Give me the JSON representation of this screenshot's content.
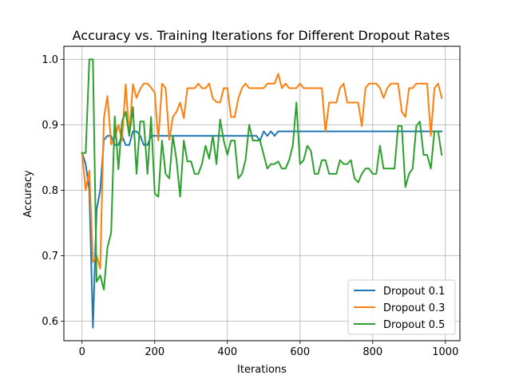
{
  "chart_data": {
    "type": "line",
    "title": "Accuracy vs. Training Iterations for Different Dropout Rates",
    "xlabel": "Iterations",
    "ylabel": "Accuracy",
    "xlim": [
      -50,
      1040
    ],
    "ylim": [
      0.57,
      1.02
    ],
    "xticks": [
      0,
      200,
      400,
      600,
      800,
      1000
    ],
    "yticks": [
      0.6,
      0.7,
      0.8,
      0.9,
      1.0
    ],
    "xtick_labels": [
      "0",
      "200",
      "400",
      "600",
      "800",
      "1000"
    ],
    "ytick_labels": [
      "0.6",
      "0.7",
      "0.8",
      "0.9",
      "1.0"
    ],
    "grid": true,
    "legend_position": "lower-right",
    "series": [
      {
        "name": "Dropout 0.1",
        "color": "#1f77b4",
        "x": [
          0,
          10,
          20,
          30,
          40,
          50,
          60,
          70,
          80,
          90,
          100,
          110,
          120,
          130,
          140,
          150,
          160,
          170,
          180,
          190,
          200,
          210,
          220,
          480,
          490,
          500,
          510,
          520,
          530,
          540,
          550,
          990
        ],
        "values": [
          0.857,
          0.84,
          0.8,
          0.59,
          0.77,
          0.8,
          0.877,
          0.883,
          0.883,
          0.869,
          0.869,
          0.883,
          0.869,
          0.869,
          0.89,
          0.89,
          0.883,
          0.869,
          0.869,
          0.883,
          0.883,
          0.883,
          0.883,
          0.883,
          0.876,
          0.89,
          0.883,
          0.89,
          0.883,
          0.89,
          0.89,
          0.89
        ]
      },
      {
        "name": "Dropout 0.3",
        "color": "#ff7f0e",
        "x": [
          0,
          10,
          20,
          30,
          40,
          50,
          60,
          70,
          80,
          90,
          100,
          110,
          120,
          130,
          140,
          150,
          160,
          170,
          180,
          190,
          200,
          210,
          220,
          230,
          240,
          250,
          260,
          270,
          280,
          290,
          300,
          310,
          320,
          330,
          340,
          350,
          360,
          370,
          380,
          390,
          400,
          410,
          420,
          430,
          440,
          450,
          460,
          470,
          480,
          490,
          500,
          510,
          520,
          530,
          540,
          550,
          560,
          570,
          580,
          590,
          600,
          610,
          620,
          630,
          640,
          650,
          660,
          670,
          680,
          690,
          700,
          710,
          720,
          730,
          740,
          750,
          760,
          770,
          780,
          790,
          800,
          810,
          820,
          830,
          840,
          850,
          860,
          870,
          880,
          890,
          900,
          910,
          920,
          930,
          940,
          950,
          960,
          970,
          980,
          990
        ],
        "values": [
          0.857,
          0.8,
          0.83,
          0.69,
          0.7,
          0.68,
          0.91,
          0.944,
          0.87,
          0.88,
          0.9,
          0.876,
          0.962,
          0.883,
          0.962,
          0.941,
          0.955,
          0.963,
          0.963,
          0.957,
          0.949,
          0.876,
          0.963,
          0.956,
          0.877,
          0.912,
          0.92,
          0.934,
          0.91,
          0.956,
          0.956,
          0.956,
          0.963,
          0.956,
          0.956,
          0.963,
          0.94,
          0.935,
          0.934,
          0.956,
          0.956,
          0.912,
          0.912,
          0.94,
          0.956,
          0.963,
          0.956,
          0.956,
          0.956,
          0.956,
          0.956,
          0.963,
          0.963,
          0.963,
          0.978,
          0.956,
          0.963,
          0.956,
          0.956,
          0.956,
          0.963,
          0.956,
          0.956,
          0.956,
          0.956,
          0.956,
          0.956,
          0.89,
          0.934,
          0.934,
          0.934,
          0.956,
          0.963,
          0.934,
          0.934,
          0.934,
          0.934,
          0.898,
          0.956,
          0.963,
          0.963,
          0.963,
          0.956,
          0.941,
          0.956,
          0.963,
          0.963,
          0.963,
          0.92,
          0.912,
          0.956,
          0.956,
          0.963,
          0.963,
          0.963,
          0.963,
          0.883,
          0.956,
          0.963,
          0.941
        ]
      },
      {
        "name": "Dropout 0.5",
        "color": "#2ca02c",
        "x": [
          0,
          10,
          20,
          30,
          40,
          50,
          60,
          70,
          80,
          90,
          100,
          110,
          120,
          130,
          140,
          150,
          160,
          170,
          180,
          190,
          200,
          210,
          220,
          230,
          240,
          250,
          260,
          270,
          280,
          290,
          300,
          310,
          320,
          330,
          340,
          350,
          360,
          370,
          380,
          390,
          400,
          410,
          420,
          430,
          440,
          450,
          460,
          470,
          480,
          490,
          500,
          510,
          520,
          530,
          540,
          550,
          560,
          570,
          580,
          590,
          600,
          610,
          620,
          630,
          640,
          650,
          660,
          670,
          680,
          690,
          700,
          710,
          720,
          730,
          740,
          750,
          760,
          770,
          780,
          790,
          800,
          810,
          820,
          830,
          840,
          850,
          860,
          870,
          880,
          890,
          900,
          910,
          920,
          930,
          940,
          950,
          960,
          970,
          980,
          990
        ],
        "values": [
          0.857,
          0.857,
          1.0,
          1.0,
          0.66,
          0.67,
          0.648,
          0.713,
          0.735,
          0.913,
          0.832,
          0.905,
          0.92,
          0.883,
          0.927,
          0.825,
          0.905,
          0.905,
          0.825,
          0.912,
          0.795,
          0.79,
          0.876,
          0.825,
          0.818,
          0.883,
          0.846,
          0.79,
          0.876,
          0.844,
          0.844,
          0.825,
          0.825,
          0.84,
          0.868,
          0.848,
          0.883,
          0.84,
          0.908,
          0.876,
          0.854,
          0.876,
          0.876,
          0.818,
          0.825,
          0.846,
          0.9,
          0.876,
          0.876,
          0.876,
          0.854,
          0.833,
          0.84,
          0.84,
          0.844,
          0.833,
          0.833,
          0.846,
          0.868,
          0.934,
          0.84,
          0.846,
          0.868,
          0.86,
          0.825,
          0.825,
          0.846,
          0.846,
          0.825,
          0.825,
          0.825,
          0.846,
          0.84,
          0.84,
          0.846,
          0.818,
          0.812,
          0.825,
          0.833,
          0.833,
          0.825,
          0.825,
          0.868,
          0.833,
          0.833,
          0.833,
          0.833,
          0.898,
          0.898,
          0.805,
          0.825,
          0.833,
          0.898,
          0.905,
          0.854,
          0.854,
          0.833,
          0.89,
          0.89,
          0.854
        ]
      }
    ]
  }
}
